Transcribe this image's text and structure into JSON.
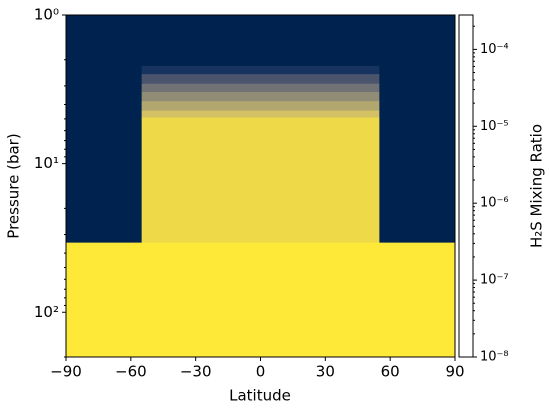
{
  "chart_data": {
    "type": "heatmap",
    "xlabel": "Latitude",
    "ylabel": "Pressure (bar)",
    "colorbar_label": "H₂S Mixing Ratio",
    "x_edges": [
      -90,
      -55,
      55,
      90
    ],
    "y_edges": [
      1,
      2.2,
      2.5,
      2.9,
      3.3,
      3.8,
      4.4,
      4.9,
      34,
      200
    ],
    "values": [
      [
        1e-08,
        1e-08,
        1e-08
      ],
      [
        1e-08,
        3e-08,
        1e-08
      ],
      [
        1e-08,
        2e-07,
        1e-08
      ],
      [
        1e-08,
        1e-06,
        1e-08
      ],
      [
        1e-08,
        4e-06,
        1e-08
      ],
      [
        1e-08,
        1.5e-05,
        1e-08
      ],
      [
        1e-08,
        5e-05,
        1e-08
      ],
      [
        1e-08,
        0.00015,
        1e-08
      ],
      [
        0.00028,
        0.00028,
        0.00028
      ]
    ],
    "xlim": [
      -90,
      90
    ],
    "xticks": [
      {
        "value": -90,
        "label": "−90"
      },
      {
        "value": -60,
        "label": "−60"
      },
      {
        "value": -30,
        "label": "−30"
      },
      0,
      30,
      60,
      90
    ],
    "ylim": [
      1,
      200
    ],
    "y_scale": "log",
    "y_inverted": true,
    "yticks": [
      {
        "value": 1,
        "label": "10⁰"
      },
      {
        "value": 10,
        "label": "10¹"
      },
      {
        "value": 100,
        "label": "10²"
      }
    ],
    "clim": [
      1e-08,
      0.00028
    ],
    "c_scale": "log",
    "cticks": [
      {
        "value": 1e-08,
        "label": "10⁻⁸"
      },
      {
        "value": 1e-07,
        "label": "10⁻⁷"
      },
      {
        "value": 1e-06,
        "label": "10⁻⁶"
      },
      {
        "value": 1e-05,
        "label": "10⁻⁵"
      },
      {
        "value": 0.0001,
        "label": "10⁻⁴"
      }
    ],
    "colormap": [
      "#00224e",
      "#233e6c",
      "#575c6d",
      "#7c7b78",
      "#a59c74",
      "#d3c164",
      "#fee838"
    ]
  }
}
